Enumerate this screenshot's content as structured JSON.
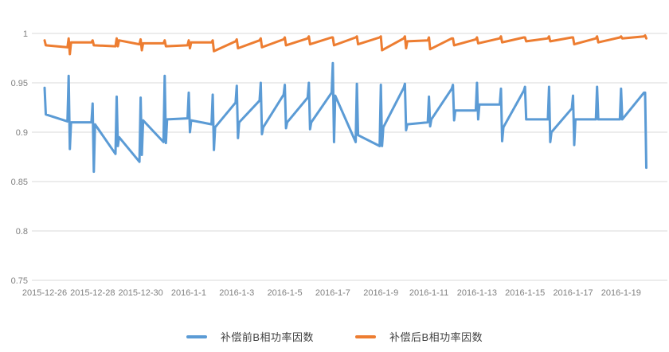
{
  "chart_data": {
    "type": "line",
    "title": "",
    "xlabel": "",
    "ylabel": "",
    "ylim": [
      0.75,
      1.0
    ],
    "grid": true,
    "legend_position": "bottom-center",
    "background_color": "#ffffff",
    "gridline_color": "#d9d9d9",
    "tick_label_color": "#808080",
    "ytick_labels": [
      "1",
      "0.95",
      "0.9",
      "0.85",
      "0.8",
      "0.75"
    ],
    "yticks": [
      1,
      0.95,
      0.9,
      0.85,
      0.8,
      0.75
    ],
    "xtick_labels": [
      "2015-12-26",
      "2015-12-28",
      "2015-12-30",
      "2016-1-1",
      "2016-1-3",
      "2016-1-5",
      "2016-1-7",
      "2016-1-9",
      "2016-1-11",
      "2016-1-13",
      "2016-1-15",
      "2016-1-17",
      "2016-1-19"
    ],
    "x_unit": "day-index from 2015-12-26, one tick label every 2 days",
    "x_day_count": 26,
    "series": [
      {
        "name": "补偿前B相功率因数",
        "color": "#5b9bd5",
        "points": [
          [
            0,
            0.945
          ],
          [
            0.05,
            0.918
          ],
          [
            0.95,
            0.911
          ],
          [
            1,
            0.957
          ],
          [
            1.05,
            0.883
          ],
          [
            1.1,
            0.91
          ],
          [
            1.95,
            0.91
          ],
          [
            2,
            0.929
          ],
          [
            2.05,
            0.86
          ],
          [
            2.1,
            0.908
          ],
          [
            2.95,
            0.878
          ],
          [
            3,
            0.936
          ],
          [
            3.05,
            0.886
          ],
          [
            3.1,
            0.895
          ],
          [
            3.95,
            0.87
          ],
          [
            4,
            0.935
          ],
          [
            4.05,
            0.877
          ],
          [
            4.1,
            0.912
          ],
          [
            4.95,
            0.89
          ],
          [
            5,
            0.957
          ],
          [
            5.05,
            0.889
          ],
          [
            5.1,
            0.913
          ],
          [
            5.95,
            0.914
          ],
          [
            6,
            0.94
          ],
          [
            6.05,
            0.9
          ],
          [
            6.1,
            0.912
          ],
          [
            6.95,
            0.908
          ],
          [
            7,
            0.938
          ],
          [
            7.05,
            0.882
          ],
          [
            7.1,
            0.905
          ],
          [
            7.95,
            0.93
          ],
          [
            8,
            0.947
          ],
          [
            8.05,
            0.894
          ],
          [
            8.1,
            0.91
          ],
          [
            8.95,
            0.932
          ],
          [
            9,
            0.95
          ],
          [
            9.05,
            0.898
          ],
          [
            9.1,
            0.905
          ],
          [
            9.95,
            0.938
          ],
          [
            10,
            0.948
          ],
          [
            10.05,
            0.904
          ],
          [
            10.1,
            0.91
          ],
          [
            10.95,
            0.935
          ],
          [
            11,
            0.95
          ],
          [
            11.05,
            0.903
          ],
          [
            11.1,
            0.91
          ],
          [
            11.95,
            0.94
          ],
          [
            12,
            0.97
          ],
          [
            12.05,
            0.89
          ],
          [
            12.1,
            0.937
          ],
          [
            12.95,
            0.89
          ],
          [
            13,
            0.949
          ],
          [
            13.05,
            0.897
          ],
          [
            13.95,
            0.886
          ],
          [
            14,
            0.948
          ],
          [
            14.05,
            0.886
          ],
          [
            14.1,
            0.905
          ],
          [
            14.95,
            0.945
          ],
          [
            15,
            0.949
          ],
          [
            15.05,
            0.902
          ],
          [
            15.1,
            0.908
          ],
          [
            15.95,
            0.91
          ],
          [
            16,
            0.936
          ],
          [
            16.05,
            0.906
          ],
          [
            16.1,
            0.913
          ],
          [
            16.95,
            0.944
          ],
          [
            17,
            0.948
          ],
          [
            17.05,
            0.912
          ],
          [
            17.1,
            0.922
          ],
          [
            17.95,
            0.922
          ],
          [
            18,
            0.95
          ],
          [
            18.05,
            0.913
          ],
          [
            18.1,
            0.928
          ],
          [
            18.95,
            0.928
          ],
          [
            19,
            0.944
          ],
          [
            19.05,
            0.891
          ],
          [
            19.1,
            0.905
          ],
          [
            19.95,
            0.942
          ],
          [
            20,
            0.946
          ],
          [
            20.05,
            0.913
          ],
          [
            20.95,
            0.913
          ],
          [
            21,
            0.946
          ],
          [
            21.05,
            0.89
          ],
          [
            21.1,
            0.9
          ],
          [
            21.95,
            0.924
          ],
          [
            22,
            0.937
          ],
          [
            22.05,
            0.887
          ],
          [
            22.1,
            0.913
          ],
          [
            22.95,
            0.913
          ],
          [
            23,
            0.946
          ],
          [
            23.05,
            0.913
          ],
          [
            23.95,
            0.913
          ],
          [
            24,
            0.944
          ],
          [
            24.05,
            0.913
          ],
          [
            24.95,
            0.94
          ],
          [
            25,
            0.94
          ],
          [
            25.05,
            0.864
          ]
        ]
      },
      {
        "name": "补偿后B相功率因数",
        "color": "#ed7d31",
        "points": [
          [
            0,
            0.993
          ],
          [
            0.05,
            0.988
          ],
          [
            0.95,
            0.986
          ],
          [
            1,
            0.995
          ],
          [
            1.05,
            0.979
          ],
          [
            1.1,
            0.991
          ],
          [
            1.95,
            0.991
          ],
          [
            2,
            0.993
          ],
          [
            2.05,
            0.988
          ],
          [
            2.95,
            0.987
          ],
          [
            3,
            0.995
          ],
          [
            3.05,
            0.987
          ],
          [
            3.1,
            0.993
          ],
          [
            3.95,
            0.989
          ],
          [
            4,
            0.994
          ],
          [
            4.05,
            0.983
          ],
          [
            4.1,
            0.99
          ],
          [
            4.95,
            0.99
          ],
          [
            5,
            0.993
          ],
          [
            5.05,
            0.987
          ],
          [
            5.95,
            0.988
          ],
          [
            6,
            0.993
          ],
          [
            6.05,
            0.985
          ],
          [
            6.1,
            0.991
          ],
          [
            6.95,
            0.991
          ],
          [
            7,
            0.993
          ],
          [
            7.05,
            0.982
          ],
          [
            7.95,
            0.992
          ],
          [
            8,
            0.994
          ],
          [
            8.05,
            0.985
          ],
          [
            8.95,
            0.993
          ],
          [
            9,
            0.995
          ],
          [
            9.05,
            0.986
          ],
          [
            9.95,
            0.994
          ],
          [
            10,
            0.996
          ],
          [
            10.05,
            0.988
          ],
          [
            10.95,
            0.995
          ],
          [
            11,
            0.997
          ],
          [
            11.05,
            0.989
          ],
          [
            11.95,
            0.996
          ],
          [
            12,
            0.996
          ],
          [
            12.05,
            0.988
          ],
          [
            12.95,
            0.996
          ],
          [
            13,
            0.997
          ],
          [
            13.05,
            0.989
          ],
          [
            13.95,
            0.996
          ],
          [
            14,
            0.997
          ],
          [
            14.05,
            0.983
          ],
          [
            14.95,
            0.995
          ],
          [
            15,
            0.997
          ],
          [
            15.05,
            0.985
          ],
          [
            15.1,
            0.992
          ],
          [
            15.95,
            0.993
          ],
          [
            16,
            0.996
          ],
          [
            16.05,
            0.984
          ],
          [
            16.95,
            0.995
          ],
          [
            17,
            0.995
          ],
          [
            17.05,
            0.988
          ],
          [
            17.95,
            0.994
          ],
          [
            18,
            0.996
          ],
          [
            18.05,
            0.99
          ],
          [
            18.95,
            0.995
          ],
          [
            19,
            0.997
          ],
          [
            19.05,
            0.991
          ],
          [
            19.95,
            0.996
          ],
          [
            20,
            0.996
          ],
          [
            20.05,
            0.992
          ],
          [
            20.95,
            0.995
          ],
          [
            21,
            0.997
          ],
          [
            21.05,
            0.992
          ],
          [
            21.95,
            0.996
          ],
          [
            22,
            0.996
          ],
          [
            22.05,
            0.989
          ],
          [
            22.95,
            0.995
          ],
          [
            23,
            0.997
          ],
          [
            23.05,
            0.991
          ],
          [
            23.95,
            0.996
          ],
          [
            24,
            0.997
          ],
          [
            24.05,
            0.995
          ],
          [
            24.95,
            0.997
          ],
          [
            25,
            0.998
          ],
          [
            25.05,
            0.995
          ]
        ]
      }
    ]
  },
  "legend": {
    "before_label": "补偿前B相功率因数",
    "after_label": "补偿后B相功率因数"
  }
}
